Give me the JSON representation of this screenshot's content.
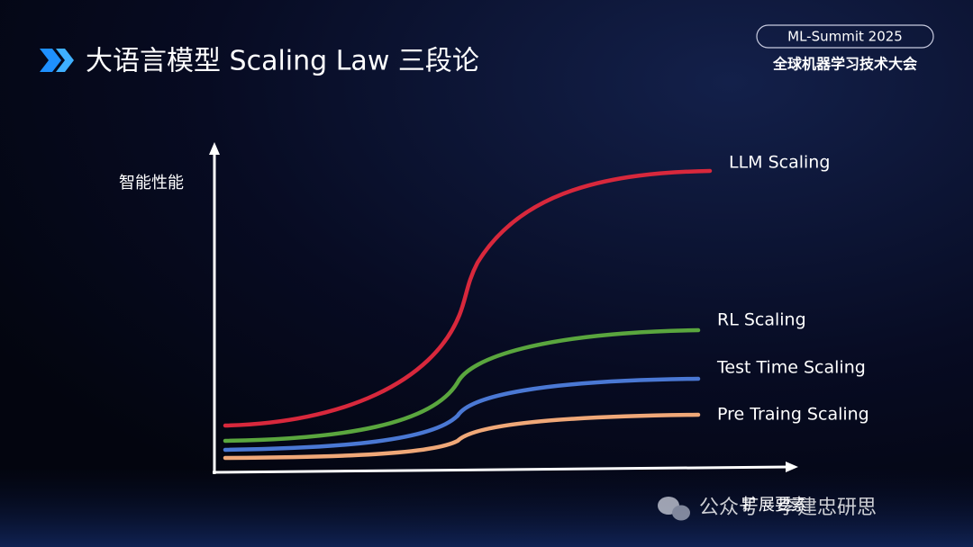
{
  "header": {
    "title": "大语言模型 Scaling Law 三段论",
    "badge": "ML-Summit 2025",
    "conference": "全球机器学习技术大会"
  },
  "diagram": {
    "y_axis_label": "智能性能",
    "x_axis_label": "扩展要素",
    "curves": [
      {
        "label": "LLM Scaling"
      },
      {
        "label": "RL Scaling"
      },
      {
        "label": "Test Time Scaling"
      },
      {
        "label": "Pre Traing Scaling"
      }
    ]
  },
  "watermark": "公众号 · 李建忠研思"
}
